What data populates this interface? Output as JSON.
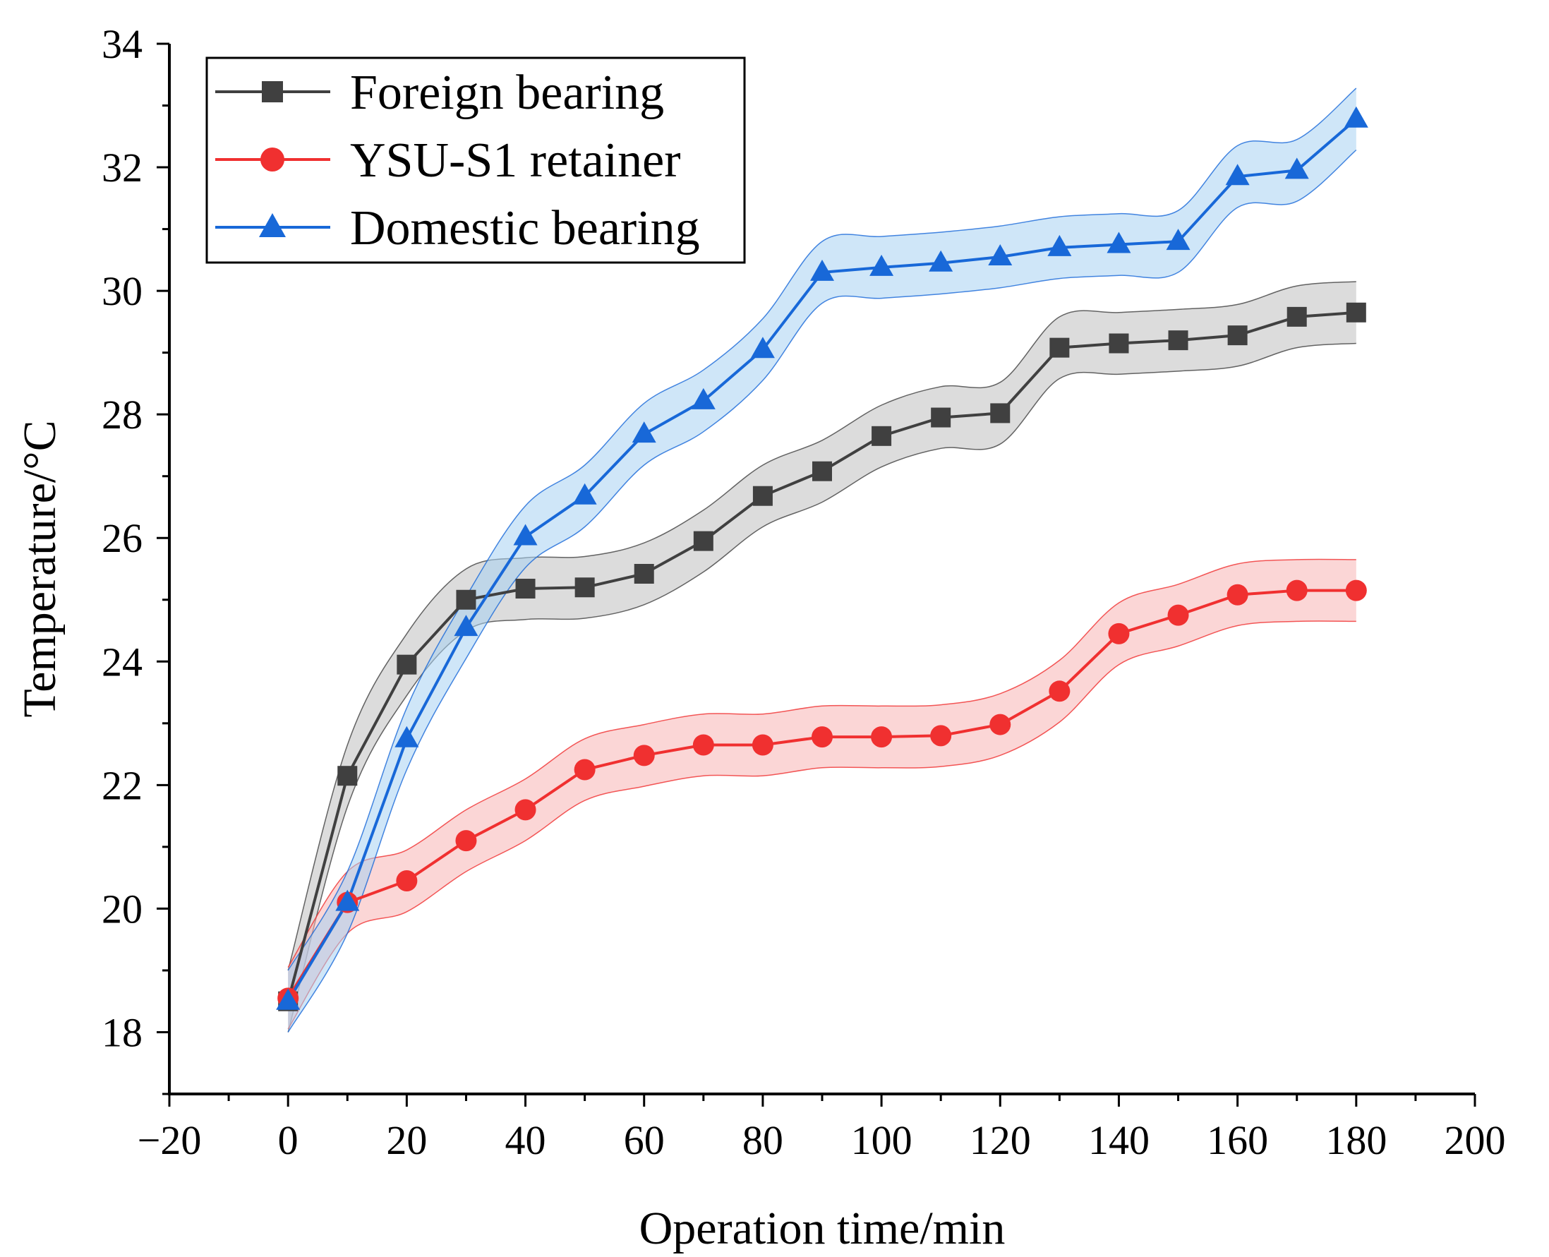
{
  "chart_data": {
    "type": "line",
    "title": "",
    "xlabel": "Operation time/min",
    "ylabel": "Temperature/°C",
    "xlim": [
      -20,
      200
    ],
    "ylim": [
      17,
      34
    ],
    "xticks": [
      -20,
      0,
      20,
      40,
      60,
      80,
      100,
      120,
      140,
      160,
      180,
      200
    ],
    "yticks": [
      18,
      20,
      22,
      24,
      26,
      28,
      30,
      32,
      34
    ],
    "xtick_labels": [
      "−20",
      "0",
      "20",
      "40",
      "60",
      "80",
      "100",
      "120",
      "140",
      "160",
      "180",
      "200"
    ],
    "ytick_labels": [
      "18",
      "20",
      "22",
      "24",
      "26",
      "28",
      "30",
      "32",
      "34"
    ],
    "x": [
      0,
      10,
      20,
      30,
      40,
      50,
      60,
      70,
      80,
      90,
      100,
      110,
      120,
      130,
      140,
      150,
      160,
      170,
      180
    ],
    "legend_position": "top-left",
    "band_halfwidth": 0.5,
    "series": [
      {
        "name": "Foreign bearing",
        "color": "#404040",
        "band_color": "#bfbfbf",
        "marker": "square",
        "values": [
          18.5,
          22.15,
          23.95,
          25.0,
          25.18,
          25.2,
          25.42,
          25.95,
          26.68,
          27.08,
          27.65,
          27.95,
          28.02,
          29.08,
          29.15,
          29.2,
          29.28,
          29.58,
          29.65
        ]
      },
      {
        "name": "YSU-S1 retainer",
        "color": "#f03030",
        "band_color": "#f7b5b5",
        "marker": "circle",
        "values": [
          18.55,
          20.1,
          20.45,
          21.1,
          21.6,
          22.25,
          22.48,
          22.65,
          22.65,
          22.78,
          22.78,
          22.8,
          22.98,
          23.52,
          24.45,
          24.75,
          25.08,
          25.15,
          25.15
        ]
      },
      {
        "name": "Domestic bearing",
        "color": "#1868d8",
        "band_color": "#a8d2f2",
        "marker": "triangle",
        "values": [
          18.5,
          20.1,
          22.75,
          24.55,
          26.02,
          26.68,
          27.68,
          28.22,
          29.05,
          30.3,
          30.38,
          30.45,
          30.55,
          30.7,
          30.75,
          30.8,
          31.85,
          31.95,
          32.78
        ]
      }
    ]
  }
}
